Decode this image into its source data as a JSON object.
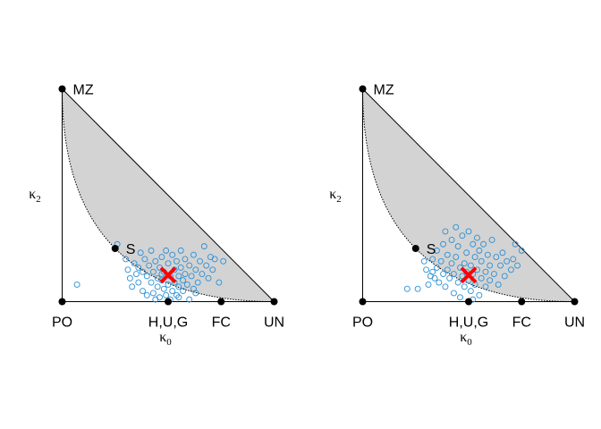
{
  "chart_data": [
    {
      "type": "scatter",
      "panel": "left",
      "xlabel": "κ",
      "xlabel_sub": "0",
      "ylabel": "κ",
      "ylabel_sub": "2",
      "xlim": [
        0,
        1
      ],
      "ylim": [
        0,
        1
      ],
      "grid": false,
      "colors": {
        "region": "#d3d3d3",
        "points": "#2b8fd6",
        "marker": "#ff0000",
        "vertex": "#000000"
      },
      "vertices": [
        {
          "label": "MZ",
          "x": 0,
          "y": 1,
          "label_pos": "right"
        },
        {
          "label": "PO",
          "x": 0,
          "y": 0,
          "label_pos": "below"
        },
        {
          "label": "H,U,G",
          "x": 0.5,
          "y": 0,
          "label_pos": "below"
        },
        {
          "label": "FC",
          "x": 0.75,
          "y": 0,
          "label_pos": "below"
        },
        {
          "label": "UN",
          "x": 1,
          "y": 0,
          "label_pos": "below"
        },
        {
          "label": "S",
          "x": 0.25,
          "y": 0.25,
          "label_pos": "right"
        }
      ],
      "estimate": {
        "x": 0.5,
        "y": 0.125
      },
      "points": [
        [
          0.07,
          0.08
        ],
        [
          0.26,
          0.27
        ],
        [
          0.3,
          0.2
        ],
        [
          0.31,
          0.15
        ],
        [
          0.32,
          0.11
        ],
        [
          0.33,
          0.07
        ],
        [
          0.34,
          0.18
        ],
        [
          0.35,
          0.13
        ],
        [
          0.36,
          0.16
        ],
        [
          0.36,
          0.09
        ],
        [
          0.37,
          0.23
        ],
        [
          0.38,
          0.14
        ],
        [
          0.38,
          0.05
        ],
        [
          0.39,
          0.2
        ],
        [
          0.4,
          0.12
        ],
        [
          0.4,
          0.03
        ],
        [
          0.41,
          0.17
        ],
        [
          0.42,
          0.09
        ],
        [
          0.42,
          0.24
        ],
        [
          0.43,
          0.14
        ],
        [
          0.43,
          0.04
        ],
        [
          0.44,
          0.19
        ],
        [
          0.45,
          0.11
        ],
        [
          0.45,
          0.07
        ],
        [
          0.46,
          0.16
        ],
        [
          0.46,
          0.02
        ],
        [
          0.47,
          0.21
        ],
        [
          0.47,
          0.1
        ],
        [
          0.48,
          0.06
        ],
        [
          0.48,
          0.14
        ],
        [
          0.49,
          0.24
        ],
        [
          0.49,
          0.03
        ],
        [
          0.5,
          0.18
        ],
        [
          0.5,
          0.08
        ],
        [
          0.51,
          0.12
        ],
        [
          0.51,
          0.01
        ],
        [
          0.52,
          0.22
        ],
        [
          0.52,
          0.05
        ],
        [
          0.53,
          0.15
        ],
        [
          0.53,
          0.09
        ],
        [
          0.54,
          0.19
        ],
        [
          0.54,
          0.03
        ],
        [
          0.55,
          0.12
        ],
        [
          0.55,
          0.07
        ],
        [
          0.56,
          0.24
        ],
        [
          0.56,
          0.16
        ],
        [
          0.57,
          0.05
        ],
        [
          0.57,
          0.1
        ],
        [
          0.58,
          0.2
        ],
        [
          0.58,
          0.13
        ],
        [
          0.59,
          0.08
        ],
        [
          0.6,
          0.01
        ],
        [
          0.6,
          0.17
        ],
        [
          0.61,
          0.12
        ],
        [
          0.62,
          0.22
        ],
        [
          0.62,
          0.06
        ],
        [
          0.63,
          0.15
        ],
        [
          0.64,
          0.09
        ],
        [
          0.65,
          0.19
        ],
        [
          0.66,
          0.13
        ],
        [
          0.67,
          0.26
        ],
        [
          0.68,
          0.17
        ],
        [
          0.69,
          0.11
        ],
        [
          0.7,
          0.21
        ],
        [
          0.71,
          0.15
        ],
        [
          0.72,
          0.2
        ],
        [
          0.74,
          0.09
        ],
        [
          0.76,
          0.19
        ],
        [
          0.63,
          0.04
        ],
        [
          0.55,
          0.02
        ],
        [
          0.47,
          0.13
        ],
        [
          0.44,
          0.01
        ]
      ]
    },
    {
      "type": "scatter",
      "panel": "right",
      "xlabel": "κ",
      "xlabel_sub": "0",
      "ylabel": "κ",
      "ylabel_sub": "2",
      "xlim": [
        0,
        1
      ],
      "ylim": [
        0,
        1
      ],
      "grid": false,
      "colors": {
        "region": "#d3d3d3",
        "points": "#2b8fd6",
        "marker": "#ff0000",
        "vertex": "#000000"
      },
      "vertices": [
        {
          "label": "MZ",
          "x": 0,
          "y": 1,
          "label_pos": "right"
        },
        {
          "label": "PO",
          "x": 0,
          "y": 0,
          "label_pos": "below"
        },
        {
          "label": "H,U,G",
          "x": 0.5,
          "y": 0,
          "label_pos": "below"
        },
        {
          "label": "FC",
          "x": 0.75,
          "y": 0,
          "label_pos": "below"
        },
        {
          "label": "UN",
          "x": 1,
          "y": 0,
          "label_pos": "below"
        },
        {
          "label": "S",
          "x": 0.25,
          "y": 0.25,
          "label_pos": "right"
        }
      ],
      "estimate": {
        "x": 0.5,
        "y": 0.125
      },
      "points": [
        [
          0.21,
          0.06
        ],
        [
          0.26,
          0.06
        ],
        [
          0.29,
          0.19
        ],
        [
          0.3,
          0.15
        ],
        [
          0.31,
          0.08
        ],
        [
          0.32,
          0.12
        ],
        [
          0.33,
          0.2
        ],
        [
          0.34,
          0.11
        ],
        [
          0.35,
          0.24
        ],
        [
          0.35,
          0.16
        ],
        [
          0.36,
          0.09
        ],
        [
          0.37,
          0.19
        ],
        [
          0.38,
          0.13
        ],
        [
          0.38,
          0.27
        ],
        [
          0.39,
          0.07
        ],
        [
          0.4,
          0.22
        ],
        [
          0.4,
          0.15
        ],
        [
          0.41,
          0.11
        ],
        [
          0.42,
          0.29
        ],
        [
          0.42,
          0.18
        ],
        [
          0.43,
          0.04
        ],
        [
          0.43,
          0.13
        ],
        [
          0.44,
          0.21
        ],
        [
          0.45,
          0.09
        ],
        [
          0.45,
          0.26
        ],
        [
          0.46,
          0.16
        ],
        [
          0.47,
          0.12
        ],
        [
          0.47,
          0.31
        ],
        [
          0.48,
          0.18
        ],
        [
          0.48,
          0.07
        ],
        [
          0.49,
          0.23
        ],
        [
          0.49,
          0.14
        ],
        [
          0.5,
          0.33
        ],
        [
          0.5,
          0.1
        ],
        [
          0.51,
          0.17
        ],
        [
          0.51,
          0.05
        ],
        [
          0.52,
          0.27
        ],
        [
          0.52,
          0.13
        ],
        [
          0.53,
          0.21
        ],
        [
          0.53,
          0.08
        ],
        [
          0.54,
          0.3
        ],
        [
          0.54,
          0.15
        ],
        [
          0.55,
          0.24
        ],
        [
          0.55,
          0.03
        ],
        [
          0.56,
          0.11
        ],
        [
          0.56,
          0.19
        ],
        [
          0.57,
          0.27
        ],
        [
          0.58,
          0.14
        ],
        [
          0.58,
          0.07
        ],
        [
          0.59,
          0.22
        ],
        [
          0.6,
          0.17
        ],
        [
          0.6,
          0.1
        ],
        [
          0.61,
          0.29
        ],
        [
          0.62,
          0.13
        ],
        [
          0.63,
          0.21
        ],
        [
          0.64,
          0.08
        ],
        [
          0.65,
          0.17
        ],
        [
          0.66,
          0.23
        ],
        [
          0.67,
          0.12
        ],
        [
          0.68,
          0.19
        ],
        [
          0.7,
          0.15
        ],
        [
          0.71,
          0.2
        ],
        [
          0.72,
          0.27
        ],
        [
          0.73,
          0.17
        ],
        [
          0.75,
          0.24
        ],
        [
          0.46,
          0.02
        ],
        [
          0.52,
          0.01
        ],
        [
          0.33,
          0.14
        ],
        [
          0.39,
          0.33
        ],
        [
          0.44,
          0.35
        ]
      ]
    }
  ]
}
